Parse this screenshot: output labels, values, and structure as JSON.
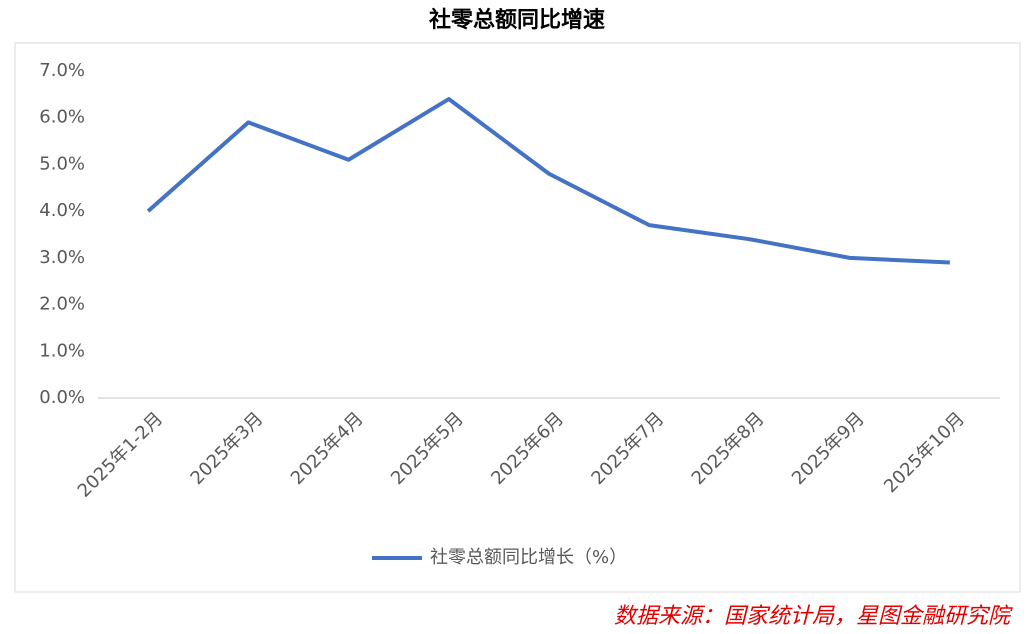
{
  "chart_data": {
    "type": "line",
    "title": "社零总额同比增速",
    "categories": [
      "2025年1-2月",
      "2025年3月",
      "2025年4月",
      "2025年5月",
      "2025年6月",
      "2025年7月",
      "2025年8月",
      "2025年9月",
      "2025年10月"
    ],
    "series": [
      {
        "name": "社零总额同比增长（%）",
        "color": "#4472c4",
        "values": [
          4.0,
          5.9,
          5.1,
          6.4,
          4.8,
          3.7,
          3.4,
          3.0,
          2.9
        ]
      }
    ],
    "ylim": [
      0,
      7
    ],
    "yticks": [
      {
        "value": 0,
        "label": "0.0%"
      },
      {
        "value": 1,
        "label": "1.0%"
      },
      {
        "value": 2,
        "label": "2.0%"
      },
      {
        "value": 3,
        "label": "3.0%"
      },
      {
        "value": 4,
        "label": "4.0%"
      },
      {
        "value": 5,
        "label": "5.0%"
      },
      {
        "value": 6,
        "label": "6.0%"
      },
      {
        "value": 7,
        "label": "7.0%"
      }
    ],
    "grid": false,
    "legend": "bottom",
    "source": "数据来源：国家统计局，星图金融研究院"
  }
}
